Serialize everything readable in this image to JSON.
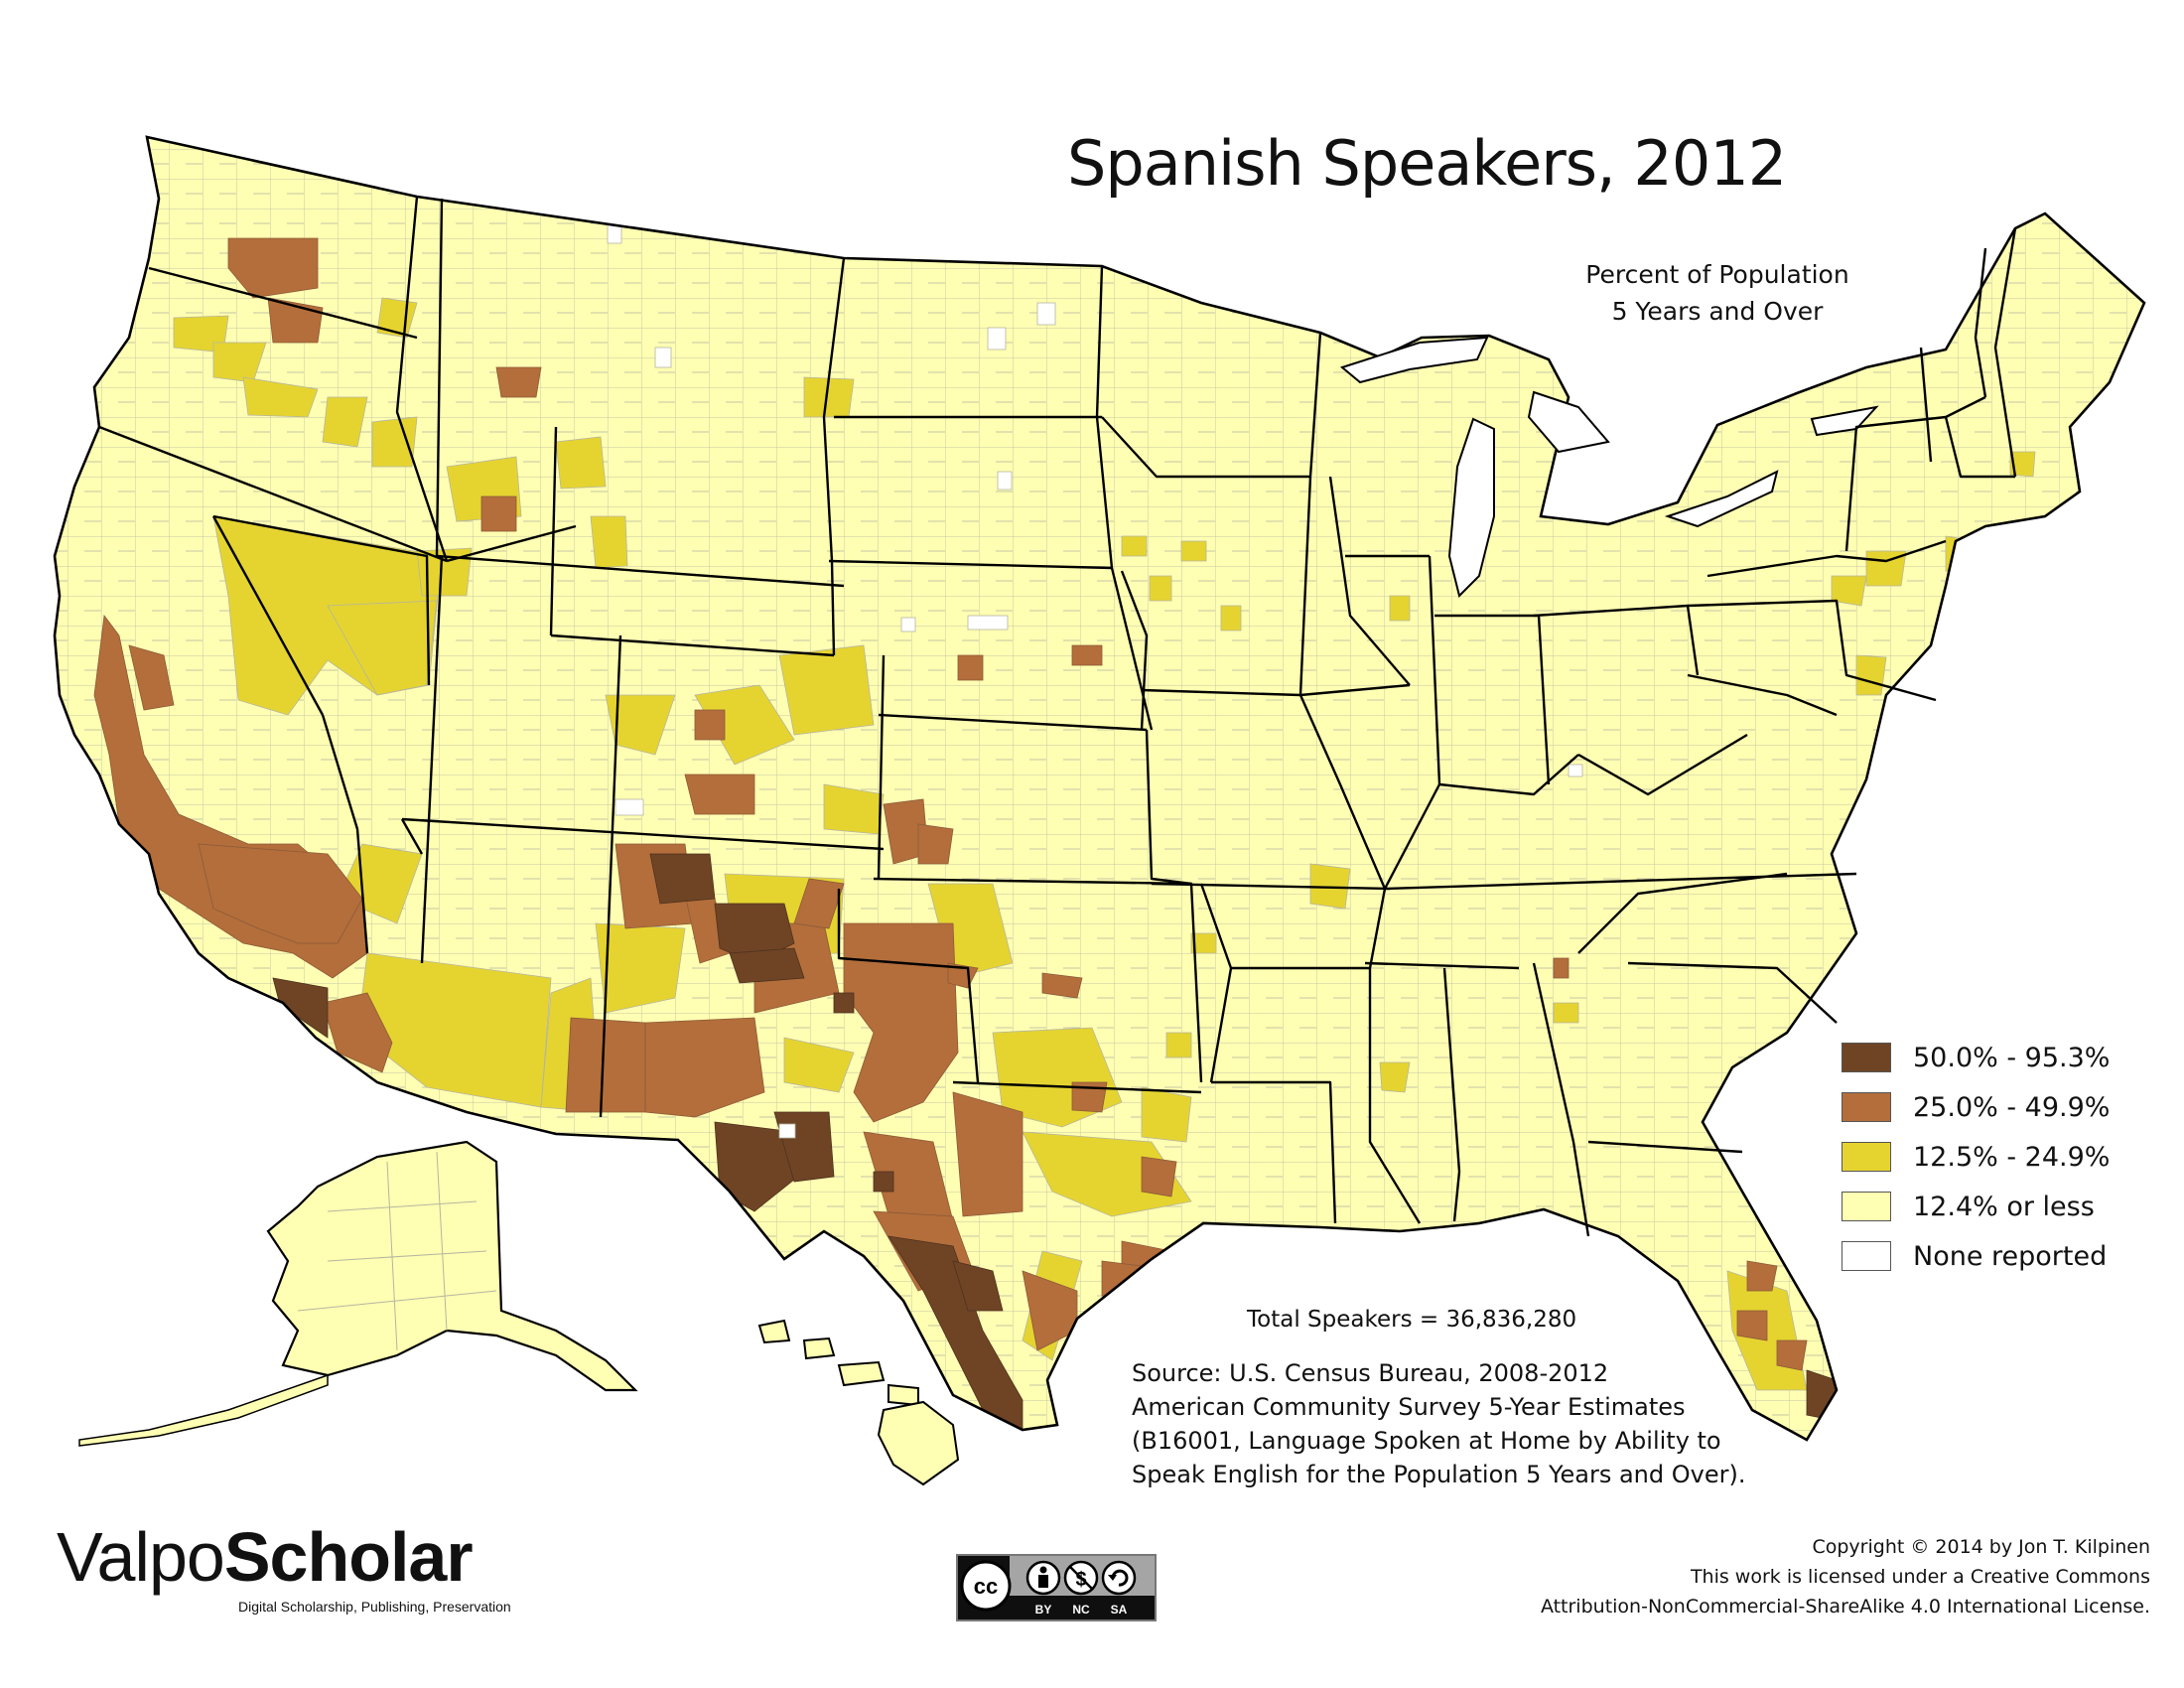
{
  "map": {
    "title": "Spanish Speakers, 2012",
    "subtitle_lines": [
      "Percent of Population",
      "5 Years and Over"
    ],
    "region": "United States",
    "colors": {
      "background": "#ffffff",
      "land_base": "#ffffb3",
      "water": "#ffffff",
      "state_border": "#000000",
      "county_border": "#b5b5a0"
    }
  },
  "legend": {
    "items": [
      {
        "label": "50.0% - 95.3%",
        "color": "#6e4425"
      },
      {
        "label": "25.0% - 49.9%",
        "color": "#b36e3b"
      },
      {
        "label": "12.5% - 24.9%",
        "color": "#e5d430"
      },
      {
        "label": "12.4% or less",
        "color": "#ffffb3"
      },
      {
        "label": "None reported",
        "color": "#ffffff"
      }
    ]
  },
  "total_speakers": "Total Speakers = 36,836,280",
  "source_lines": [
    "Source:  U.S. Census Bureau, 2008-2012",
    "American Community Survey 5-Year Estimates",
    "(B16001, Language Spoken at Home by Ability to",
    "Speak English for the Population 5 Years and Over)."
  ],
  "branding": {
    "logo_part1": "Valpo",
    "logo_part2": "Scholar",
    "tagline": "Digital Scholarship, Publishing, Preservation",
    "cc_icons": [
      "cc-icon",
      "by-icon",
      "nc-icon",
      "sa-icon"
    ],
    "cc_labels": {
      "by": "BY",
      "nc": "NC",
      "sa": "SA",
      "cc": "cc"
    }
  },
  "copyright_lines": [
    "Copyright © 2014 by Jon T. Kilpinen",
    "This work is licensed under a Creative Commons",
    "Attribution-NonCommercial-ShareAlike 4.0 International License."
  ]
}
